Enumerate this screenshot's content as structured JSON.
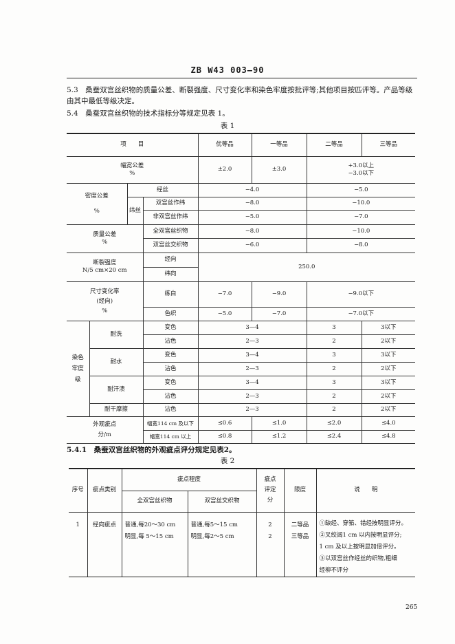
{
  "header": {
    "code": "ZB W43 003—90"
  },
  "section_5_3": "5.3　桑蚕双宫丝织物的质量公差、断裂强度、尺寸变化率和染色牢度按批评等;其他项目按匹评等。产品等级由其中最低等级决定。",
  "section_5_4": "5.4　桑蚕双宫丝织物的技术指标分等规定见表 1。",
  "table1": {
    "caption": "表 1",
    "header": {
      "item": "项　　目",
      "grades": [
        "优等品",
        "一等品",
        "二等品",
        "三等品"
      ]
    },
    "width_tol": {
      "label": "幅宽公差",
      "unit": "%",
      "v1": "±2.0",
      "v2": "±3.0",
      "v3a": "+3.0以上",
      "v3b": "−3.0以下"
    },
    "density": {
      "label": "密度公差",
      "unit": "%",
      "warp": "经丝",
      "weft": "纬丝",
      "rows": [
        {
          "sub": "经丝",
          "a": "−4.0",
          "b": "−5.0"
        },
        {
          "sub": "双宫丝作纬",
          "a": "−8.0",
          "b": "−10.0"
        },
        {
          "sub": "非双宫丝作纬",
          "a": "−5.0",
          "b": "−7.0"
        }
      ]
    },
    "mass": {
      "label": "质量公差",
      "unit": "%",
      "rows": [
        {
          "sub": "全双宫丝织物",
          "a": "−8.0",
          "b": "−10.0"
        },
        {
          "sub": "双宫丝交织物",
          "a": "−6.0",
          "b": "−8.0"
        }
      ]
    },
    "strength": {
      "label": "断裂强度",
      "unit": "N/5 cm×20 cm",
      "warp": "经向",
      "weft": "纬向",
      "value": "250.0"
    },
    "dimension": {
      "label": "尺寸变化率",
      "sub_label": "(经向)",
      "unit": "%",
      "rows": [
        {
          "sub": "练白",
          "v1": "−7.0",
          "v2": "−9.0",
          "v3": "−9.0以下"
        },
        {
          "sub": "色织",
          "v1": "−5.0",
          "v2": "−7.0",
          "v3": "−7.0以下"
        }
      ]
    },
    "fastness": {
      "label": "染色牢度级",
      "groups": [
        {
          "name": "耐洗",
          "rows": [
            {
              "sub": "变色",
              "a": "3—4",
              "b": "3",
              "c": "3以下"
            },
            {
              "sub": "沾色",
              "a": "2—3",
              "b": "2",
              "c": "2以下"
            }
          ]
        },
        {
          "name": "耐水",
          "rows": [
            {
              "sub": "变色",
              "a": "3—4",
              "b": "3",
              "c": "3以下"
            },
            {
              "sub": "沾色",
              "a": "2—3",
              "b": "2",
              "c": "2以下"
            }
          ]
        },
        {
          "name": "耐汗渍",
          "rows": [
            {
              "sub": "变色",
              "a": "3—4",
              "b": "3",
              "c": "3以下"
            },
            {
              "sub": "沾色",
              "a": "2—3",
              "b": "2",
              "c": "2以下"
            }
          ]
        },
        {
          "name": "耐干摩擦",
          "rows": [
            {
              "sub": "沾色",
              "a": "2—3",
              "b": "2",
              "c": "2以下"
            }
          ]
        }
      ]
    },
    "defects": {
      "label": "外观疵点",
      "unit": "分/m",
      "rows": [
        {
          "sub": "幅宽114 cm 及以下",
          "v": [
            "≤0.6",
            "≤1.0",
            "≤2.0",
            "≤4.0"
          ]
        },
        {
          "sub": "幅宽114 cm 以上",
          "v": [
            "≤0.8",
            "≤1.2",
            "≤2.4",
            "≤4.8"
          ]
        }
      ]
    }
  },
  "section_5_4_1": "5.4.1　桑蚕双宫丝织物的外观疵点评分规定见表2。",
  "table2": {
    "caption": "表 2",
    "header": {
      "no": "序号",
      "category": "疵点类别",
      "degree": "疵点程度",
      "full": "全双宫丝织物",
      "mixed": "双宫丝交织物",
      "score": "疵点评定分",
      "limit": "限度",
      "notes": "说　　明"
    },
    "rows": [
      {
        "no": "1",
        "category": "经向疵点",
        "full": [
          "普通,每20～30 cm",
          "明显,每 5～15 cm"
        ],
        "mixed": [
          "普通,每5～15 cm",
          "明显,每2～5 cm"
        ],
        "score": [
          "2",
          "2"
        ],
        "limit": [
          "二等品",
          "三等品"
        ],
        "notes": [
          "①缺经、穿筘、错经按明显评分。",
          "②叉绞阔1 cm 以内按明显评分;",
          "1 cm 及以上按明显加倍评分。",
          "③以双宫丝作经丝的织物,粗细",
          "经柳不评分"
        ]
      }
    ]
  },
  "page_number": "265"
}
